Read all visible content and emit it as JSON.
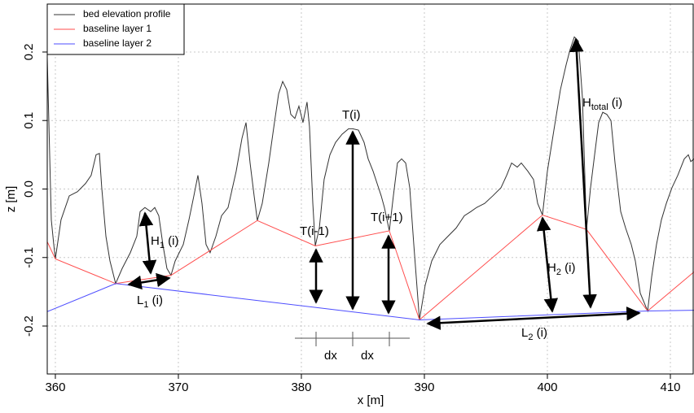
{
  "chart_data": {
    "type": "line",
    "x_label": "x [m]",
    "y_label": "z [m]",
    "xlim": [
      359.34,
      411.92
    ],
    "ylim": [
      -0.27,
      0.27
    ],
    "xticks": [
      360,
      370,
      380,
      390,
      400,
      410
    ],
    "yticks": [
      -0.2,
      -0.1,
      {
        "value": 0,
        "label": "0.0"
      },
      0.1,
      0.2
    ],
    "grid": true,
    "legend": "top-left",
    "series": [
      {
        "name": "bed elevation profile",
        "color": "#333333",
        "x": [
          359.34,
          359.67,
          359.87,
          360.0,
          360.46,
          361.13,
          361.79,
          362.45,
          362.91,
          363.31,
          363.58,
          363.77,
          364.11,
          364.44,
          364.9,
          365.43,
          366.09,
          366.62,
          366.89,
          367.28,
          367.75,
          368.08,
          368.41,
          368.74,
          369.07,
          369.4,
          369.74,
          370.4,
          370.86,
          371.26,
          371.59,
          371.92,
          372.25,
          372.58,
          373.05,
          373.51,
          374.04,
          374.7,
          375.17,
          375.5,
          375.83,
          376.16,
          376.42,
          376.82,
          377.35,
          377.81,
          378.15,
          378.48,
          378.81,
          379.14,
          379.47,
          379.8,
          380.13,
          380.46,
          380.66,
          380.93,
          381.13,
          381.46,
          381.85,
          382.32,
          382.78,
          383.31,
          383.84,
          384.17,
          384.64,
          385.1,
          385.43,
          385.83,
          386.16,
          386.49,
          386.75,
          387.15,
          387.48,
          387.81,
          388.15,
          388.48,
          388.81,
          389.14,
          389.6,
          390.07,
          390.6,
          391.26,
          391.92,
          392.58,
          393.25,
          393.77,
          394.24,
          394.9,
          395.56,
          396.23,
          396.69,
          397.09,
          397.55,
          397.88,
          398.41,
          398.87,
          399.21,
          399.6,
          400.0,
          400.53,
          401.06,
          401.52,
          401.85,
          402.19,
          402.52,
          402.85,
          403.18,
          403.51,
          403.84,
          404.17,
          404.5,
          404.83,
          405.17,
          405.5,
          405.96,
          406.36,
          406.82,
          407.15,
          407.55,
          408.15,
          408.48,
          408.87,
          409.27,
          409.67,
          410.13,
          410.6,
          411.13,
          411.46,
          411.66,
          411.92
        ],
        "values": [
          0.192,
          -0.045,
          -0.081,
          -0.102,
          -0.045,
          -0.01,
          -0.004,
          0.008,
          0.02,
          0.05,
          0.052,
          0.002,
          -0.069,
          -0.105,
          -0.138,
          -0.116,
          -0.093,
          -0.069,
          -0.033,
          -0.027,
          -0.033,
          -0.027,
          -0.039,
          -0.081,
          -0.116,
          -0.126,
          -0.105,
          -0.081,
          -0.045,
          -0.01,
          0.02,
          -0.021,
          -0.081,
          -0.093,
          -0.069,
          -0.039,
          -0.027,
          0.026,
          0.074,
          0.097,
          0.038,
          -0.01,
          -0.046,
          -0.021,
          0.038,
          0.097,
          0.139,
          0.157,
          0.145,
          0.109,
          0.103,
          0.121,
          0.097,
          0.127,
          0.091,
          -0.021,
          -0.083,
          -0.057,
          0.014,
          0.05,
          0.068,
          0.08,
          0.088,
          0.088,
          0.086,
          0.068,
          0.044,
          0.026,
          0.008,
          -0.01,
          -0.027,
          -0.061,
          -0.01,
          0.038,
          0.044,
          0.038,
          0.002,
          -0.081,
          -0.191,
          -0.14,
          -0.105,
          -0.081,
          -0.069,
          -0.057,
          -0.039,
          -0.033,
          -0.027,
          -0.021,
          -0.01,
          0.002,
          0.02,
          0.038,
          0.032,
          0.038,
          0.026,
          0.014,
          -0.021,
          -0.038,
          0.026,
          0.086,
          0.145,
          0.181,
          0.204,
          0.222,
          0.216,
          0.133,
          -0.059,
          0.002,
          0.05,
          0.097,
          0.112,
          0.109,
          0.1,
          0.038,
          -0.033,
          -0.057,
          -0.081,
          -0.105,
          -0.152,
          -0.178,
          -0.128,
          -0.081,
          -0.045,
          -0.021,
          0.002,
          0.02,
          0.044,
          0.05,
          0.04,
          0.044
        ]
      },
      {
        "name": "baseline layer 1",
        "color": "#ff4d4d",
        "x": [
          359.34,
          360.0,
          364.9,
          369.4,
          376.42,
          381.13,
          387.15,
          389.6,
          399.6,
          403.18,
          408.15,
          411.92
        ],
        "values": [
          -0.077,
          -0.102,
          -0.138,
          -0.126,
          -0.046,
          -0.083,
          -0.061,
          -0.191,
          -0.038,
          -0.059,
          -0.178,
          -0.121
        ]
      },
      {
        "name": "baseline layer 2",
        "color": "#4d4dff",
        "x": [
          359.34,
          364.9,
          389.6,
          408.15,
          411.92
        ],
        "values": [
          -0.179,
          -0.138,
          -0.191,
          -0.178,
          -0.177
        ]
      }
    ],
    "annotations": [
      {
        "label": "H",
        "subscript": "1",
        "suffix": " (i)"
      },
      {
        "label": "L",
        "subscript": "1",
        "suffix": " (i)"
      },
      {
        "label": "T(i-1)"
      },
      {
        "label": "T(i)"
      },
      {
        "label": "T(i+1)"
      },
      {
        "label": "H",
        "subscript": "2",
        "suffix": " (i)"
      },
      {
        "label": "H",
        "subscript": "total",
        "suffix": " (i)"
      },
      {
        "label": "L",
        "subscript": "2",
        "suffix": " (i)"
      },
      {
        "label": "dx"
      },
      {
        "label": "dx"
      }
    ]
  }
}
